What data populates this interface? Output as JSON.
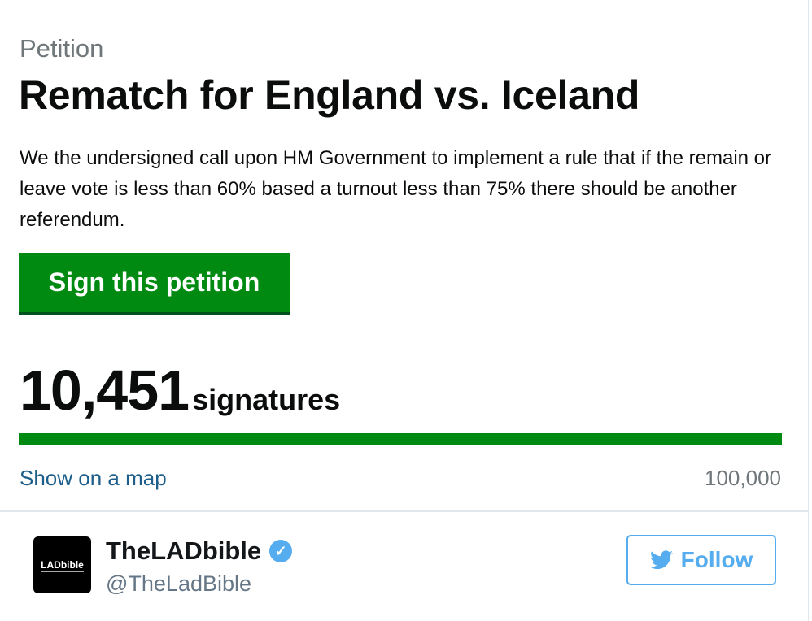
{
  "petition": {
    "kicker": "Petition",
    "title": "Rematch for England vs. Iceland",
    "description": "We the undersigned call upon HM Government to implement a rule that if the remain or leave vote is less than 60% based a turnout less than 75% there should be another referendum.",
    "sign_label": "Sign this petition",
    "signature_count": "10,451",
    "signature_label": "signatures",
    "progress_fill_percent": 100,
    "map_link": "Show on a map",
    "target": "100,000",
    "colors": {
      "accent": "#008a12",
      "link": "#1d5f8a"
    }
  },
  "tweet_author": {
    "avatar_text": "LADbible",
    "name": "TheLADbible",
    "verified_icon": "verified-badge-icon",
    "handle": "@TheLadBible",
    "follow_label": "Follow",
    "follow_icon": "twitter-bird-icon",
    "colors": {
      "twitter_blue": "#55acee"
    }
  }
}
